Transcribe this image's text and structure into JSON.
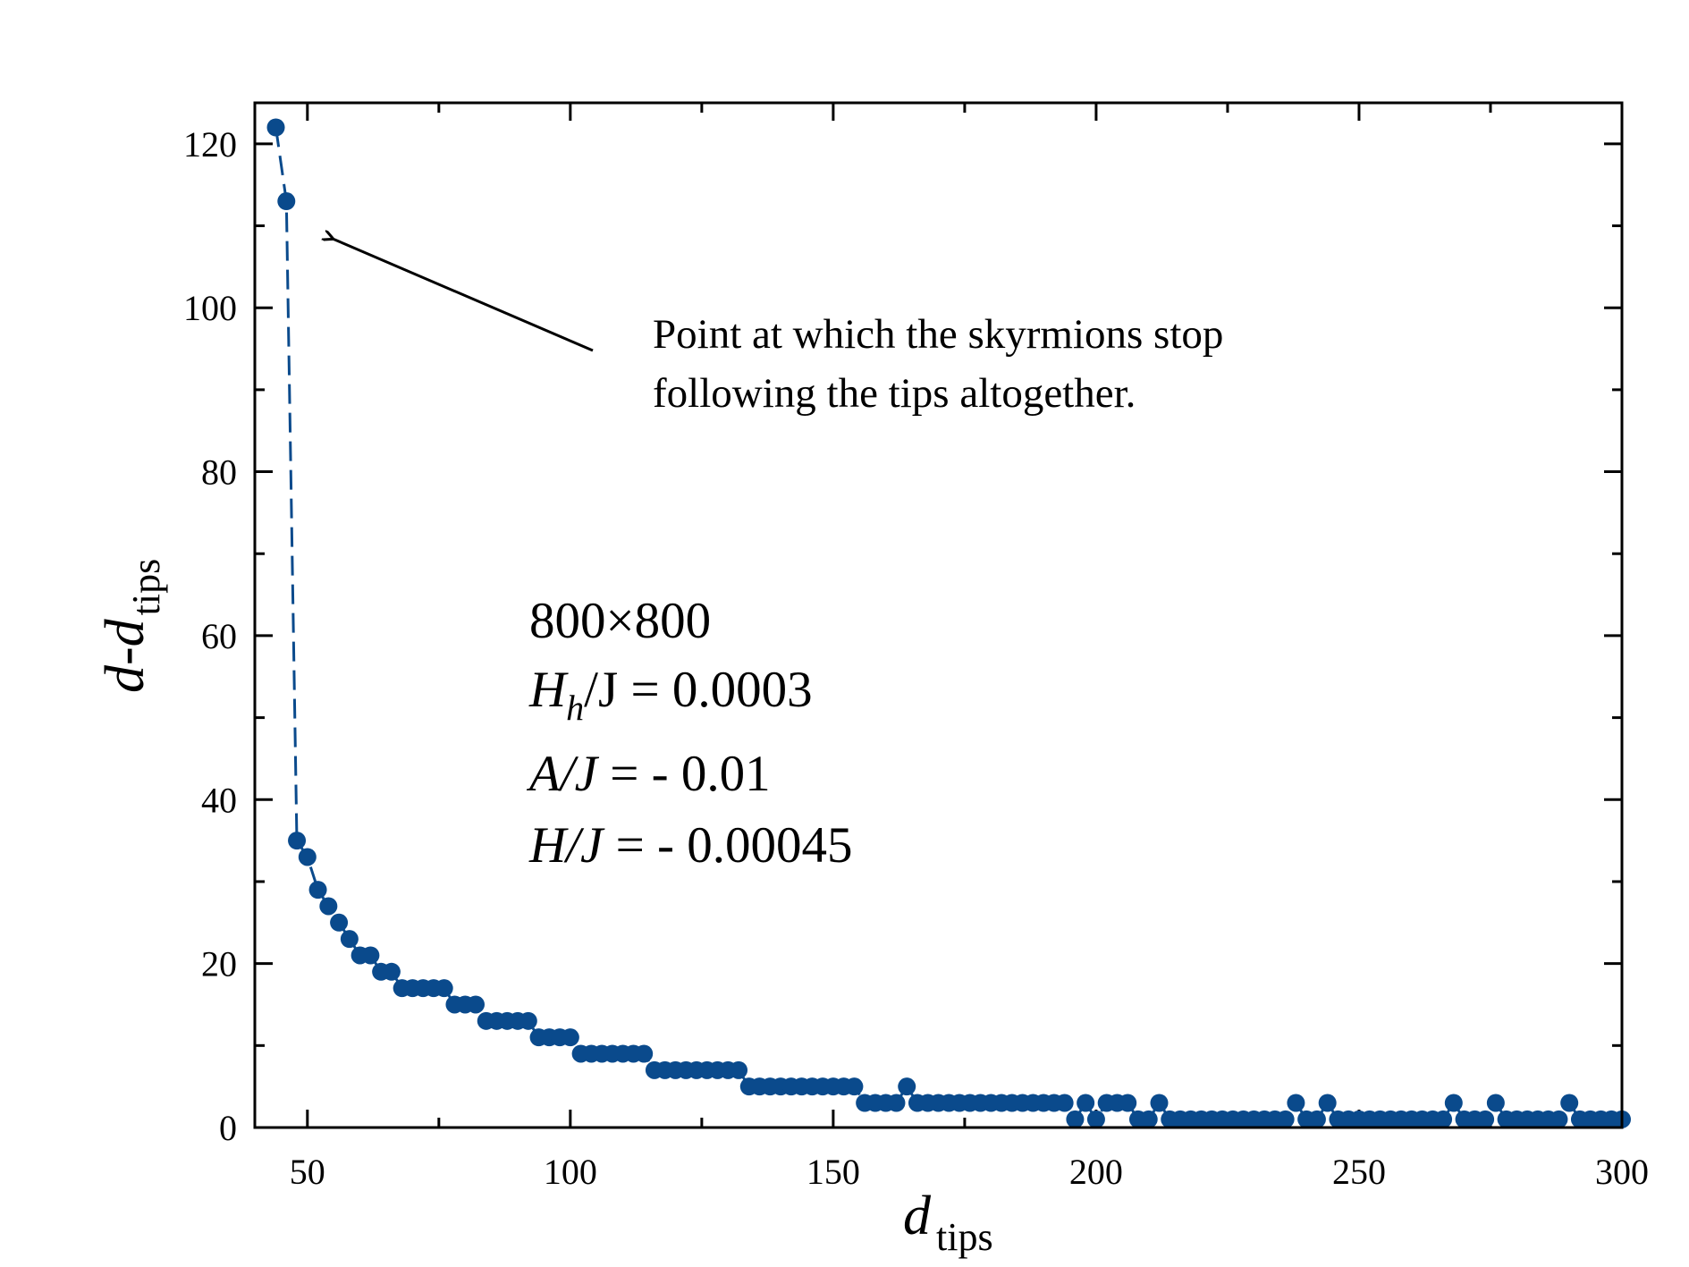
{
  "chart_data": {
    "type": "scatter",
    "title": "",
    "xlabel_main": "d",
    "xlabel_sub": "tips",
    "ylabel_main": "d-d",
    "ylabel_sub": "tips",
    "xlim": [
      40,
      300
    ],
    "ylim": [
      0,
      125
    ],
    "x_ticks": [
      50,
      100,
      150,
      200,
      250,
      300
    ],
    "y_ticks": [
      0,
      20,
      40,
      60,
      80,
      100,
      120
    ],
    "x_minor_step": 25,
    "y_minor_step": 10,
    "grid": false,
    "marker_color": "#0a4a8c",
    "line_color": "#0a4a8c",
    "line_style": "dashed",
    "series": [
      {
        "name": "d-d_tips",
        "x": [
          44,
          46,
          48,
          50,
          52,
          54,
          56,
          58,
          60,
          62,
          64,
          66,
          68,
          70,
          72,
          74,
          76,
          78,
          80,
          82,
          84,
          86,
          88,
          90,
          92,
          94,
          96,
          98,
          100,
          102,
          104,
          106,
          108,
          110,
          112,
          114,
          116,
          118,
          120,
          122,
          124,
          126,
          128,
          130,
          132,
          134,
          136,
          138,
          140,
          142,
          144,
          146,
          148,
          150,
          152,
          154,
          156,
          158,
          160,
          162,
          164,
          166,
          168,
          170,
          172,
          174,
          176,
          178,
          180,
          182,
          184,
          186,
          188,
          190,
          192,
          194,
          196,
          198,
          200,
          202,
          204,
          206,
          208,
          210,
          212,
          214,
          216,
          218,
          220,
          222,
          224,
          226,
          228,
          230,
          232,
          234,
          236,
          238,
          240,
          242,
          244,
          246,
          248,
          250,
          252,
          254,
          256,
          258,
          260,
          262,
          264,
          266,
          268,
          270,
          272,
          274,
          276,
          278,
          280,
          282,
          284,
          286,
          288,
          290,
          292,
          294,
          296,
          298,
          300
        ],
        "y": [
          122,
          113,
          35,
          33,
          29,
          27,
          25,
          23,
          21,
          21,
          19,
          19,
          17,
          17,
          17,
          17,
          17,
          15,
          15,
          15,
          13,
          13,
          13,
          13,
          13,
          11,
          11,
          11,
          11,
          9,
          9,
          9,
          9,
          9,
          9,
          9,
          7,
          7,
          7,
          7,
          7,
          7,
          7,
          7,
          7,
          5,
          5,
          5,
          5,
          5,
          5,
          5,
          5,
          5,
          5,
          5,
          3,
          3,
          3,
          3,
          5,
          3,
          3,
          3,
          3,
          3,
          3,
          3,
          3,
          3,
          3,
          3,
          3,
          3,
          3,
          3,
          1,
          3,
          1,
          3,
          3,
          3,
          1,
          1,
          3,
          1,
          1,
          1,
          1,
          1,
          1,
          1,
          1,
          1,
          1,
          1,
          1,
          3,
          1,
          1,
          3,
          1,
          1,
          1,
          1,
          1,
          1,
          1,
          1,
          1,
          1,
          1,
          3,
          1,
          1,
          1,
          3,
          1,
          1,
          1,
          1,
          1,
          1,
          3,
          1,
          1,
          1,
          1,
          1
        ]
      }
    ],
    "annotation": {
      "line1": "Point at which the skyrmions stop",
      "line2": "following the tips altogether.",
      "arrow_target": [
        46,
        113
      ]
    },
    "parameters": {
      "size": "800×800",
      "hh_main": "H",
      "hh_sub": "h",
      "hh_rest": "/J  = 0.0003",
      "a_line_italic": "A/J",
      "a_line_rest": " = - 0.01",
      "h_line_italic": "H/J",
      "h_line_rest": "  = - 0.00045"
    }
  }
}
